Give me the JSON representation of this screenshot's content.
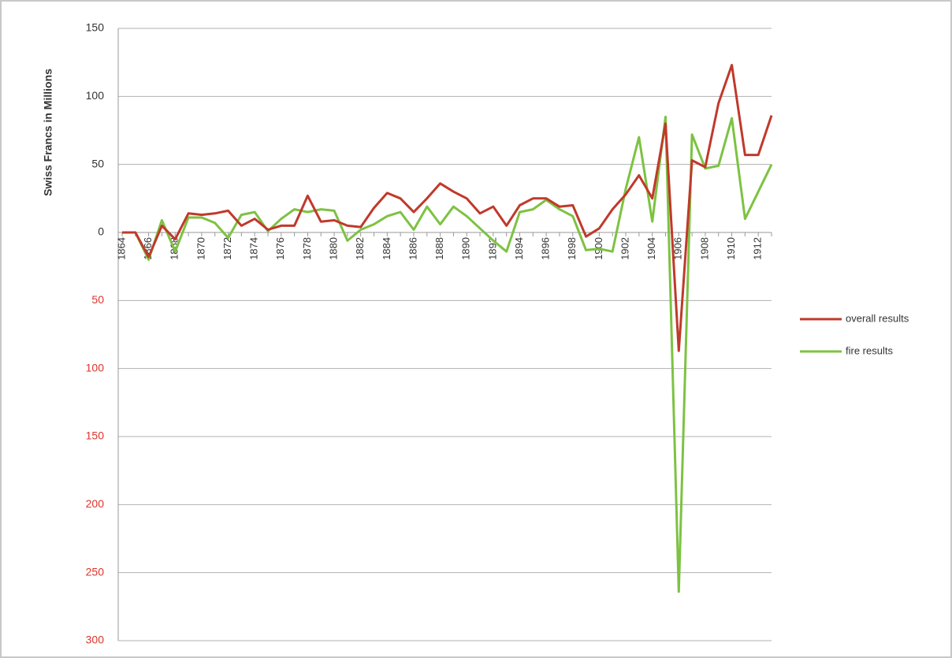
{
  "chart_data": {
    "type": "line",
    "y_label": "Swiss Francs in Millions",
    "categories": [
      "1864",
      null,
      "1866",
      null,
      "1868",
      null,
      "1870",
      null,
      "1872",
      null,
      "1874",
      null,
      "1876",
      null,
      "1878",
      null,
      "1880",
      null,
      "1882",
      null,
      "1884",
      null,
      "1886",
      null,
      "1888",
      null,
      "1890",
      null,
      "1892",
      null,
      "1894",
      null,
      "1896",
      null,
      "1898",
      null,
      "1900",
      null,
      "1902",
      null,
      "1904",
      null,
      "1906",
      null,
      "1908",
      null,
      "1910",
      null,
      "1912",
      null
    ],
    "series": [
      {
        "name": "overall results",
        "color": "#c0392b",
        "values": [
          0,
          0,
          -18,
          5,
          -5,
          14,
          13,
          14,
          16,
          5,
          10,
          2,
          5,
          5,
          27,
          8,
          9,
          5,
          4,
          18,
          29,
          25,
          15,
          25,
          36,
          30,
          25,
          14,
          19,
          5,
          20,
          25,
          25,
          19,
          20,
          -3,
          3,
          17,
          28,
          42,
          25,
          80,
          -87,
          53,
          48,
          95,
          123,
          57,
          57,
          86
        ]
      },
      {
        "name": "fire results",
        "color": "#7dc242",
        "values": [
          0,
          0,
          -20,
          9,
          -14,
          11,
          11,
          7,
          -4,
          13,
          15,
          1,
          10,
          17,
          15,
          17,
          16,
          -6,
          2,
          6,
          12,
          15,
          2,
          19,
          6,
          19,
          12,
          3,
          -6,
          -14,
          15,
          17,
          24,
          17,
          12,
          -13,
          -12,
          -14,
          32,
          70,
          8,
          85,
          -264,
          72,
          47,
          49,
          84,
          10,
          30,
          50
        ]
      }
    ],
    "ylim": [
      -300,
      150
    ],
    "yticks": [
      150,
      100,
      50,
      0,
      {
        "value": -50,
        "label": "50"
      },
      {
        "value": -100,
        "label": "100"
      },
      {
        "value": -150,
        "label": "150"
      },
      {
        "value": -200,
        "label": "200"
      },
      {
        "value": -250,
        "label": "250"
      },
      {
        "value": -300,
        "label": "300"
      }
    ],
    "negative_tick_label_color": "#e0342c",
    "grid": true,
    "legend": "right"
  }
}
